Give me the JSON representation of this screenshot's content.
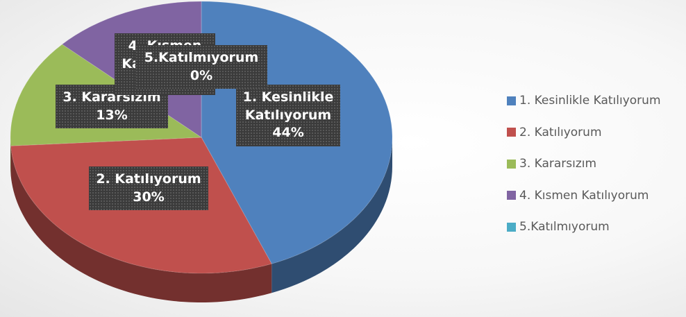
{
  "chart_data": {
    "type": "pie",
    "categories": [
      "1. Kesinlikle Katılıyorum",
      "2. Katılıyorum",
      "3. Kararsızım",
      "4. Kısmen Katılıyorum",
      "5.Katılmıyorum"
    ],
    "values": [
      44,
      30,
      13,
      13,
      0
    ],
    "value_labels": [
      "44%",
      "30%",
      "13%",
      "13%",
      "0%"
    ],
    "colors": [
      "#4f81bd",
      "#c0504d",
      "#9bbb59",
      "#8064a2",
      "#4bacc6"
    ],
    "legend": "right"
  }
}
